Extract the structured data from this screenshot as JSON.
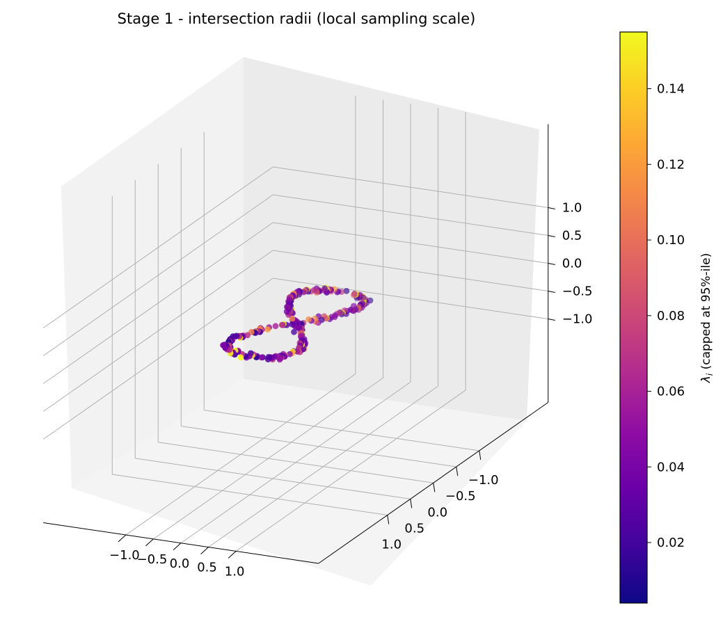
{
  "chart_data": {
    "type": "scatter",
    "projection": "3d",
    "title": "Stage 1 - intersection radii (local sampling scale)",
    "xlim": [
      -1.2,
      1.2
    ],
    "ylim": [
      -1.2,
      1.2
    ],
    "zlim": [
      -1.2,
      1.2
    ],
    "x_ticks": [
      "−1.0",
      "−0.5",
      "0.0",
      "0.5",
      "1.0"
    ],
    "y_ticks": [
      "−1.0",
      "−0.5",
      "0.0",
      "0.5",
      "1.0"
    ],
    "z_ticks": [
      "−1.0",
      "−0.5",
      "0.0",
      "0.5",
      "1.0"
    ],
    "grid": true,
    "shape": "figure-eight loop (lemniscate) with small noise, z approximately 0",
    "point_count": 300,
    "value_range": [
      0.0,
      0.155
    ],
    "colormap": "plasma",
    "colorbar": {
      "label_symbol": "λ",
      "label_subscript": "i",
      "label_text": " (capped at 95%-ile)",
      "range": [
        0.004,
        0.155
      ],
      "ticks": [
        "0.02",
        "0.04",
        "0.06",
        "0.08",
        "0.10",
        "0.12",
        "0.14"
      ],
      "tick_values": [
        0.02,
        0.04,
        0.06,
        0.08,
        0.1,
        0.12,
        0.14
      ]
    }
  }
}
